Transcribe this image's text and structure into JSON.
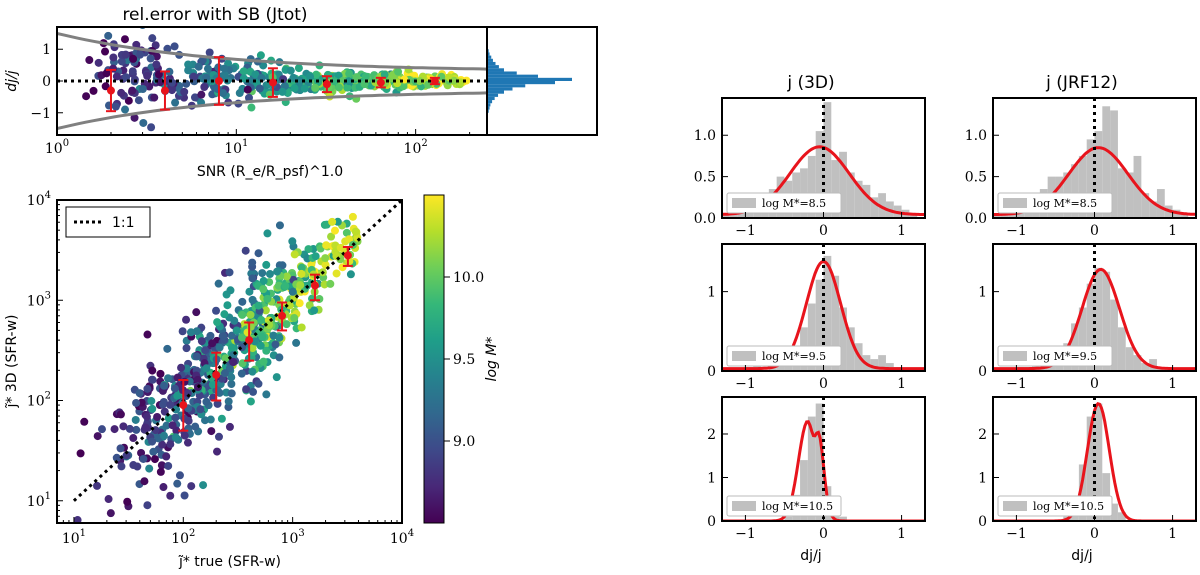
{
  "colors": {
    "red": "#e8141c",
    "hist_gray": "#c0c0c0",
    "curve_gray": "#808080",
    "blue_hist": "#1f77b4",
    "viridis": [
      "#440154",
      "#482878",
      "#3e4989",
      "#31688e",
      "#26828e",
      "#1f9e89",
      "#35b779",
      "#6ece58",
      "#b5de2b",
      "#fde725"
    ]
  },
  "top_left": {
    "title": "rel.error with SB (Jtot)",
    "ylabel": "dj/j",
    "xlabel": "SNR (R_e/R_psf)^1.0",
    "x_ticks": [
      {
        "v": 1,
        "label": "10",
        "exp": "0"
      },
      {
        "v": 10,
        "label": "10",
        "exp": "1"
      },
      {
        "v": 100,
        "label": "10",
        "exp": "2"
      }
    ],
    "y_ticks": [
      {
        "v": 1,
        "label": "1"
      },
      {
        "v": 0,
        "label": "0"
      },
      {
        "v": -1,
        "label": "−1"
      }
    ],
    "xlim": [
      1,
      250
    ],
    "ylim": [
      -1.7,
      1.7
    ]
  },
  "scatter_panel": {
    "xlabel": "j̃* true (SFR-w)",
    "ylabel": "j̃* 3D (SFR-w)",
    "legend": "1:1",
    "colorbar_label": "log M*",
    "colorbar_ticks": [
      {
        "v": 9.0,
        "label": "9.0"
      },
      {
        "v": 9.5,
        "label": "9.5"
      },
      {
        "v": 10.0,
        "label": "10.0"
      }
    ],
    "colorbar_range": [
      8.5,
      10.5
    ],
    "x_ticks": [
      {
        "v": 10,
        "label": "10",
        "exp": "1"
      },
      {
        "v": 100,
        "label": "10",
        "exp": "2"
      },
      {
        "v": 1000,
        "label": "10",
        "exp": "3"
      },
      {
        "v": 10000,
        "label": "10",
        "exp": "4"
      }
    ],
    "y_ticks": [
      {
        "v": 10,
        "label": "10",
        "exp": "1"
      },
      {
        "v": 100,
        "label": "10",
        "exp": "2"
      },
      {
        "v": 1000,
        "label": "10",
        "exp": "3"
      },
      {
        "v": 10000,
        "label": "10",
        "exp": "4"
      }
    ]
  },
  "right_grid": {
    "col_titles": [
      "j (3D)",
      "j (JRF12)"
    ],
    "xlabel": "dj/j",
    "x_ticks": [
      {
        "v": -1,
        "label": "−1"
      },
      {
        "v": 0,
        "label": "0"
      },
      {
        "v": 1,
        "label": "1"
      }
    ],
    "legend_labels": [
      "log M*=8.5",
      "log M*=9.5",
      "log M*=10.5"
    ]
  },
  "chart_data": [
    {
      "id": "snr_relerror",
      "type": "scatter",
      "title": "rel.error with SB (Jtot)",
      "xlabel": "SNR (Re/Rpsf)^1.0",
      "ylabel": "dj/j",
      "xscale": "log",
      "xlim": [
        1,
        250
      ],
      "ylim": [
        -1.7,
        1.7
      ],
      "binned": {
        "x": [
          2,
          4,
          8,
          16,
          32,
          64,
          128
        ],
        "y": [
          -0.3,
          -0.3,
          0.0,
          -0.05,
          -0.1,
          -0.05,
          0.0
        ],
        "yerr": [
          0.65,
          0.6,
          0.75,
          0.45,
          0.25,
          0.15,
          0.1
        ]
      },
      "envelope": "±1.2/sqrt(SNR)",
      "reference_line": 0,
      "side_histogram": {
        "bins": [
          -1.0,
          -0.9,
          -0.8,
          -0.7,
          -0.6,
          -0.5,
          -0.4,
          -0.3,
          -0.2,
          -0.1,
          0.0,
          0.1,
          0.2,
          0.3,
          0.4,
          0.5,
          0.6,
          0.7,
          0.8,
          0.9,
          1.0
        ],
        "counts": [
          2,
          3,
          4,
          6,
          9,
          13,
          20,
          30,
          45,
          80,
          100,
          60,
          35,
          20,
          14,
          10,
          7,
          5,
          3,
          2
        ]
      }
    },
    {
      "id": "j_true_vs_3d",
      "type": "scatter",
      "xlabel": "j̃* true (SFR-w)",
      "ylabel": "j̃* 3D (SFR-w)",
      "xscale": "log",
      "yscale": "log",
      "xlim": [
        7,
        10000
      ],
      "ylim": [
        6,
        10000
      ],
      "color_variable": "log M*",
      "one_to_one": [
        [
          10,
          10
        ],
        [
          10000,
          10000
        ]
      ],
      "binned": {
        "x": [
          100,
          200,
          400,
          800,
          1600,
          3200
        ],
        "y": [
          90,
          180,
          400,
          700,
          1400,
          2800
        ],
        "ylow": [
          50,
          100,
          250,
          500,
          1000,
          2200
        ],
        "yhigh": [
          160,
          300,
          600,
          950,
          1800,
          3400
        ]
      }
    },
    {
      "id": "hist_grid",
      "type": "bar",
      "xlabel": "dj/j",
      "xlim": [
        -1.3,
        1.3
      ],
      "panels": [
        {
          "column": "j (3D)",
          "mass": 8.5,
          "ylim": [
            0,
            1.45
          ],
          "y_ticks": [
            "0.0",
            "0.5",
            "1.0"
          ],
          "bins": [
            -1.3,
            -1.2,
            -1.1,
            -1.0,
            -0.9,
            -0.8,
            -0.7,
            -0.6,
            -0.5,
            -0.4,
            -0.3,
            -0.2,
            -0.1,
            0.0,
            0.1,
            0.2,
            0.3,
            0.4,
            0.5,
            0.6,
            0.7,
            0.8,
            0.9,
            1.0,
            1.1,
            1.2
          ],
          "counts": [
            0.05,
            0.1,
            0.15,
            0.2,
            0.15,
            0.25,
            0.35,
            0.5,
            0.45,
            0.55,
            0.6,
            0.75,
            1.05,
            1.4,
            0.7,
            0.8,
            0.55,
            0.45,
            0.4,
            0.25,
            0.3,
            0.2,
            0.15,
            0.1,
            0.05
          ],
          "kde": {
            "mu": -0.05,
            "sigma": 0.38,
            "peak": 0.86,
            "floor": 0.04
          }
        },
        {
          "column": "j (JRF12)",
          "mass": 8.5,
          "ylim": [
            0,
            1.45
          ],
          "y_ticks": [
            "0.0",
            "0.5",
            "1.0"
          ],
          "bins": [
            -1.3,
            -1.2,
            -1.1,
            -1.0,
            -0.9,
            -0.8,
            -0.7,
            -0.6,
            -0.5,
            -0.4,
            -0.3,
            -0.2,
            -0.1,
            0.0,
            0.1,
            0.2,
            0.3,
            0.4,
            0.5,
            0.6,
            0.7,
            0.8,
            0.9,
            1.0,
            1.1,
            1.2
          ],
          "counts": [
            0.05,
            0.1,
            0.15,
            0.2,
            0.15,
            0.3,
            0.35,
            0.5,
            0.5,
            0.55,
            0.65,
            0.75,
            0.95,
            1.05,
            1.35,
            1.3,
            0.6,
            0.55,
            0.75,
            0.3,
            0.2,
            0.35,
            0.15,
            0.1,
            0.05
          ],
          "kde": {
            "mu": 0.05,
            "sigma": 0.38,
            "peak": 0.85,
            "floor": 0.04
          }
        },
        {
          "column": "j (3D)",
          "mass": 9.5,
          "ylim": [
            0,
            1.6
          ],
          "y_ticks": [
            "0",
            "1"
          ],
          "bins": [
            -1.3,
            -1.2,
            -1.1,
            -1.0,
            -0.9,
            -0.8,
            -0.7,
            -0.6,
            -0.5,
            -0.4,
            -0.3,
            -0.2,
            -0.1,
            0.0,
            0.1,
            0.2,
            0.3,
            0.4,
            0.5,
            0.6,
            0.7,
            0.8,
            0.9,
            1.0,
            1.1,
            1.2
          ],
          "counts": [
            0.0,
            0.0,
            0.0,
            0.05,
            0.1,
            0.0,
            0.05,
            0.1,
            0.25,
            0.3,
            0.55,
            0.85,
            1.15,
            1.45,
            1.2,
            0.8,
            0.55,
            0.35,
            0.2,
            0.15,
            0.2,
            0.1,
            0.05,
            0.0,
            0.0
          ],
          "kde": {
            "mu": 0.0,
            "sigma": 0.22,
            "peak": 1.38,
            "floor": 0.03
          }
        },
        {
          "column": "j (JRF12)",
          "mass": 9.5,
          "ylim": [
            0,
            1.6
          ],
          "y_ticks": [
            "0",
            "1"
          ],
          "bins": [
            -1.3,
            -1.2,
            -1.1,
            -1.0,
            -0.9,
            -0.8,
            -0.7,
            -0.6,
            -0.5,
            -0.4,
            -0.3,
            -0.2,
            -0.1,
            0.0,
            0.1,
            0.2,
            0.3,
            0.4,
            0.5,
            0.6,
            0.7,
            0.8,
            0.9,
            1.0,
            1.1,
            1.2
          ],
          "counts": [
            0.0,
            0.0,
            0.0,
            0.05,
            0.05,
            0.1,
            0.05,
            0.1,
            0.2,
            0.35,
            0.6,
            0.8,
            1.1,
            1.3,
            1.25,
            0.9,
            0.55,
            0.3,
            0.2,
            0.1,
            0.15,
            0.05,
            0.05,
            0.0,
            0.0
          ],
          "kde": {
            "mu": 0.08,
            "sigma": 0.24,
            "peak": 1.28,
            "floor": 0.03
          }
        },
        {
          "column": "j (3D)",
          "mass": 10.5,
          "ylim": [
            0,
            2.85
          ],
          "y_ticks": [
            "0",
            "1",
            "2"
          ],
          "bins": [
            -1.3,
            -1.2,
            -1.1,
            -1.0,
            -0.9,
            -0.8,
            -0.7,
            -0.6,
            -0.5,
            -0.4,
            -0.3,
            -0.2,
            -0.1,
            0.0,
            0.1,
            0.2,
            0.3,
            0.4,
            0.5,
            0.6,
            0.7,
            0.8,
            0.9,
            1.0,
            1.1,
            1.2
          ],
          "counts": [
            0,
            0,
            0,
            0,
            0,
            0,
            0,
            0,
            0.1,
            0.6,
            1.4,
            2.4,
            2.7,
            0.8,
            0.1,
            0.1,
            0,
            0,
            0,
            0,
            0,
            0,
            0,
            0,
            0
          ],
          "kde": {
            "mu": -0.2,
            "sigma": 0.12,
            "peak": 2.3,
            "floor": 0.0
          }
        },
        {
          "column": "j (JRF12)",
          "mass": 10.5,
          "ylim": [
            0,
            2.85
          ],
          "y_ticks": [
            "0",
            "1",
            "2"
          ],
          "bins": [
            -1.3,
            -1.2,
            -1.1,
            -1.0,
            -0.9,
            -0.8,
            -0.7,
            -0.6,
            -0.5,
            -0.4,
            -0.3,
            -0.2,
            -0.1,
            0.0,
            0.1,
            0.2,
            0.3,
            0.4,
            0.5,
            0.6,
            0.7,
            0.8,
            0.9,
            1.0,
            1.1,
            1.2
          ],
          "counts": [
            0,
            0,
            0,
            0,
            0,
            0,
            0,
            0,
            0,
            0.1,
            0.4,
            1.3,
            2.4,
            2.7,
            1.1,
            0.4,
            0.2,
            0,
            0,
            0,
            0,
            0,
            0,
            0,
            0
          ],
          "kde": {
            "mu": 0.05,
            "sigma": 0.14,
            "peak": 2.7,
            "floor": 0.0
          }
        }
      ]
    }
  ]
}
